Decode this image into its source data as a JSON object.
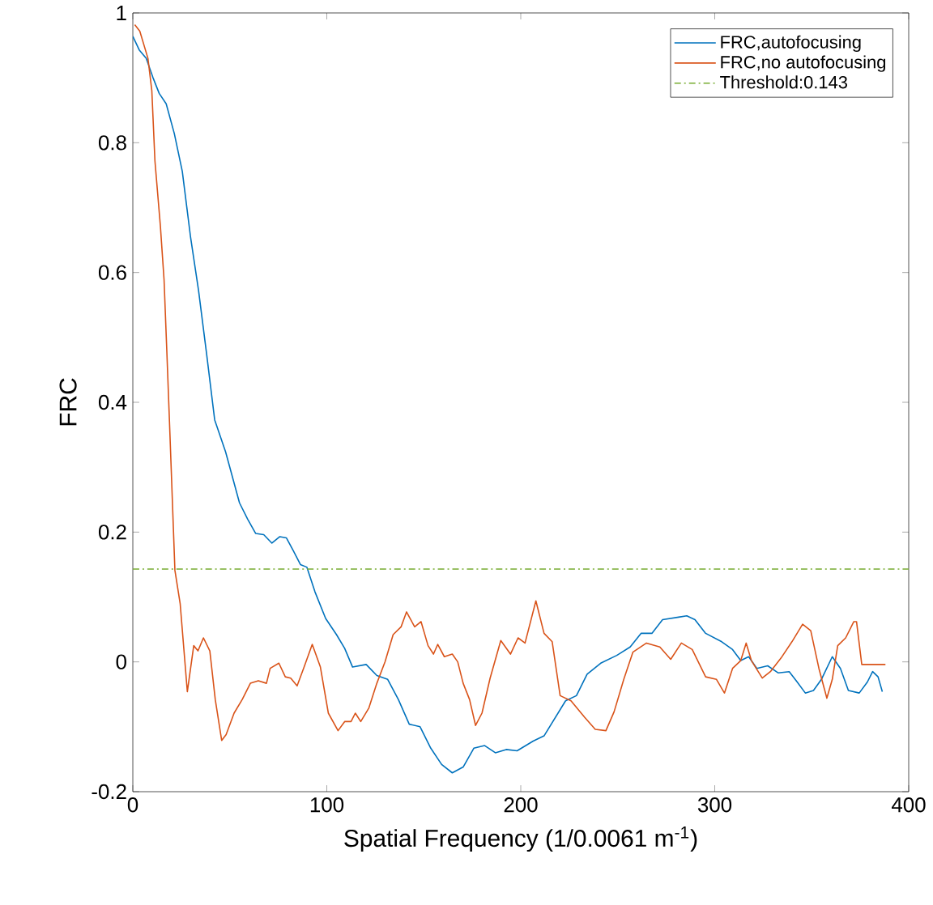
{
  "chart_data": {
    "type": "line",
    "xlabel": "Spatial Frequency (1/0.0061 m$^{-1}$)",
    "ylabel": "FRC",
    "xlim": [
      0,
      400
    ],
    "ylim": [
      -0.2,
      1
    ],
    "xticks": [
      0,
      100,
      200,
      300,
      400
    ],
    "yticks": [
      -0.2,
      0,
      0.2,
      0.4,
      0.6,
      0.8,
      1
    ],
    "grid": false,
    "legend": "top right",
    "line_style": "solid",
    "marker": "none",
    "series": [
      {
        "name": "FRC,autofocusing",
        "color": "#0072bd",
        "x": [
          0,
          3.3,
          6.9,
          10.3,
          13.6,
          17.2,
          21.4,
          25.5,
          29.7,
          33.9,
          38.1,
          42.2,
          47.8,
          55,
          59.2,
          63.3,
          67.5,
          71.7,
          75.8,
          79.2,
          82.8,
          86.4,
          89.7,
          93.9,
          99.4,
          105,
          109.2,
          113.3,
          120.3,
          125.8,
          131.4,
          136.9,
          142.5,
          148.1,
          153.6,
          159.2,
          164.7,
          170.3,
          175.8,
          181.4,
          186.9,
          192.5,
          198.1,
          206.4,
          212,
          223.1,
          228.7,
          234.2,
          241.2,
          249.5,
          256.4,
          262,
          267.6,
          273.1,
          281.4,
          285.6,
          289.8,
          295.3,
          303.6,
          309.2,
          313.4,
          317.5,
          321.7,
          327.3,
          332.8,
          338.4,
          342.5,
          346.7,
          350.9,
          355,
          360.6,
          364.8,
          368.9,
          374.5,
          378.7,
          381.4,
          384.2,
          386.4
        ],
        "values": [
          0.964,
          0.943,
          0.93,
          0.901,
          0.876,
          0.86,
          0.814,
          0.756,
          0.656,
          0.572,
          0.473,
          0.373,
          0.324,
          0.245,
          0.22,
          0.198,
          0.196,
          0.183,
          0.193,
          0.191,
          0.171,
          0.15,
          0.146,
          0.108,
          0.067,
          0.042,
          0.021,
          -0.008,
          -0.004,
          -0.021,
          -0.027,
          -0.058,
          -0.096,
          -0.1,
          -0.133,
          -0.158,
          -0.171,
          -0.162,
          -0.133,
          -0.129,
          -0.14,
          -0.135,
          -0.137,
          -0.122,
          -0.114,
          -0.06,
          -0.052,
          -0.019,
          -0.002,
          0.01,
          0.023,
          0.044,
          0.044,
          0.065,
          0.069,
          0.071,
          0.065,
          0.044,
          0.031,
          0.019,
          0.002,
          0.008,
          -0.01,
          -0.006,
          -0.017,
          -0.015,
          -0.031,
          -0.048,
          -0.044,
          -0.027,
          0.008,
          -0.01,
          -0.044,
          -0.048,
          -0.031,
          -0.015,
          -0.023,
          -0.046
        ]
      },
      {
        "name": "FRC,no autofocusing",
        "color": "#d95319",
        "x": [
          1,
          3.6,
          7.8,
          9.8,
          11.4,
          14.2,
          16.1,
          17.5,
          18.9,
          21.7,
          24.4,
          28.1,
          31.4,
          33.6,
          36.4,
          39.7,
          42.5,
          45.8,
          48.1,
          52.2,
          56.4,
          60.6,
          64.7,
          68.9,
          70.8,
          75.3,
          78.6,
          81.4,
          84.7,
          88.3,
          92.5,
          96.7,
          100.8,
          105.8,
          109.2,
          112.5,
          114.7,
          117.5,
          121.7,
          125.8,
          130,
          134.2,
          138.3,
          141.1,
          145.3,
          148.6,
          152.2,
          155,
          157.2,
          160.6,
          164.7,
          167.5,
          170.3,
          173.6,
          176.7,
          180,
          184.2,
          189.7,
          194.7,
          198.6,
          202.2,
          207.8,
          212,
          216.2,
          220.3,
          225.9,
          232.8,
          238.4,
          243.9,
          248.1,
          253.1,
          257.8,
          264.8,
          271.7,
          277.3,
          282.8,
          288.4,
          295.3,
          300.9,
          305,
          309.2,
          313.4,
          316.2,
          318.9,
          324.5,
          328.7,
          334.2,
          339.8,
          345.3,
          349.5,
          353.7,
          357.8,
          360.6,
          363.4,
          367.5,
          371.7,
          373.1,
          375.8,
          385.5,
          388
        ],
        "values": [
          0.982,
          0.972,
          0.93,
          0.88,
          0.772,
          0.672,
          0.589,
          0.481,
          0.37,
          0.141,
          0.09,
          -0.046,
          0.025,
          0.017,
          0.037,
          0.017,
          -0.058,
          -0.121,
          -0.112,
          -0.079,
          -0.058,
          -0.033,
          -0.029,
          -0.033,
          -0.01,
          -0.002,
          -0.023,
          -0.025,
          -0.037,
          -0.008,
          0.027,
          -0.008,
          -0.079,
          -0.106,
          -0.092,
          -0.092,
          -0.079,
          -0.092,
          -0.071,
          -0.033,
          0,
          0.042,
          0.054,
          0.077,
          0.054,
          0.062,
          0.025,
          0.012,
          0.027,
          0.008,
          0.012,
          0,
          -0.033,
          -0.058,
          -0.098,
          -0.079,
          -0.025,
          0.033,
          0.012,
          0.037,
          0.029,
          0.094,
          0.044,
          0.031,
          -0.052,
          -0.06,
          -0.085,
          -0.104,
          -0.106,
          -0.077,
          -0.027,
          0.015,
          0.029,
          0.023,
          0.004,
          0.029,
          0.019,
          -0.023,
          -0.027,
          -0.048,
          -0.01,
          0.002,
          0.029,
          0.002,
          -0.025,
          -0.015,
          0.006,
          0.031,
          0.058,
          0.048,
          -0.01,
          -0.056,
          -0.027,
          0.025,
          0.037,
          0.062,
          0.062,
          -0.004,
          -0.004,
          -0.004
        ]
      }
    ],
    "ref_lines": [
      {
        "axis": "y",
        "value": 0.143,
        "label": "Threshold:0.143",
        "color": "#77ac30",
        "line_style": "dashdot"
      }
    ]
  }
}
